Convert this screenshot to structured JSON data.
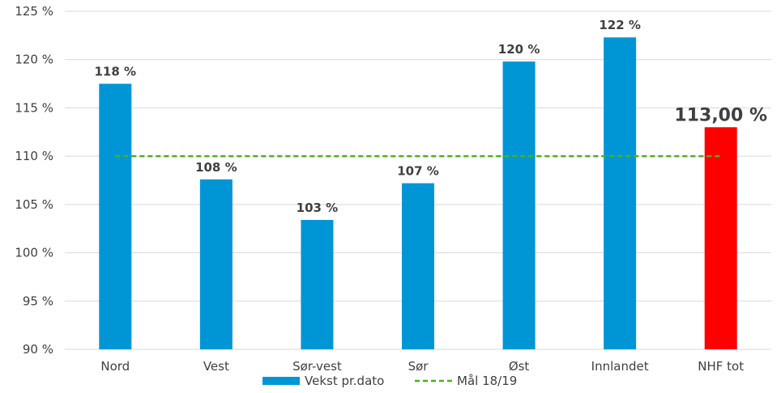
{
  "chart_data": {
    "type": "bar",
    "categories": [
      "Nord",
      "Vest",
      "Sør-vest",
      "Sør",
      "Øst",
      "Innlandet",
      "NHF tot"
    ],
    "series": [
      {
        "name": "Vekst pr.dato",
        "type": "bar",
        "values": [
          117.5,
          107.6,
          103.4,
          107.2,
          119.8,
          122.3,
          113.0
        ],
        "data_labels": [
          "118 %",
          "108 %",
          "103 %",
          "107 %",
          "120 %",
          "122 %",
          "113,00 %"
        ],
        "color": "#0096d6",
        "highlight": {
          "category": "NHF tot",
          "color": "#ff0000"
        }
      },
      {
        "name": "Mål 18/19",
        "type": "line",
        "style": "dashed",
        "values": [
          110,
          110,
          110,
          110,
          110,
          110,
          110
        ],
        "color": "#4caf22"
      }
    ],
    "ylim": [
      90,
      125
    ],
    "yticks": [
      90,
      95,
      100,
      105,
      110,
      115,
      120,
      125
    ],
    "ytick_labels": [
      "90 %",
      "95 %",
      "100 %",
      "105 %",
      "110 %",
      "115 %",
      "120 %",
      "125 %"
    ],
    "xlabel": "",
    "ylabel": "",
    "title": "",
    "grid": true,
    "legend_position": "bottom"
  }
}
